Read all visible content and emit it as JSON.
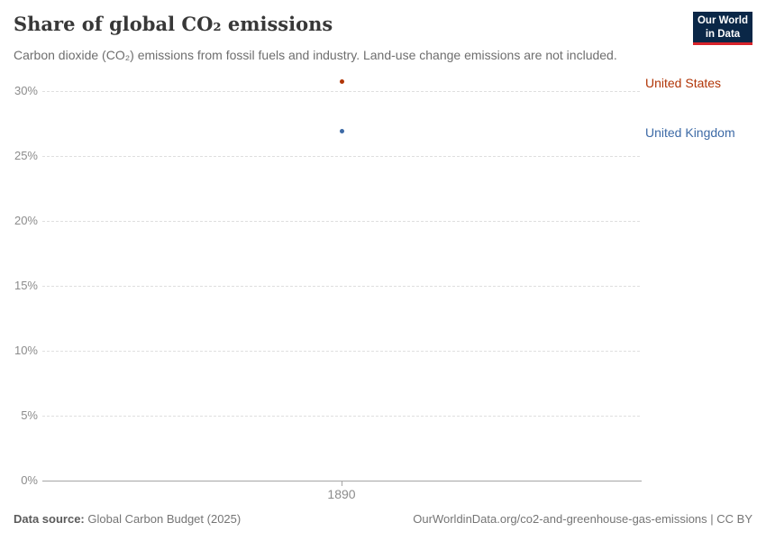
{
  "header": {
    "title": "Share of global CO₂ emissions",
    "subtitle": "Carbon dioxide (CO₂) emissions from fossil fuels and industry. Land-use change emissions are not included.",
    "logo": {
      "line1": "Our World",
      "line2": "in Data",
      "bg_color": "#0a2747",
      "accent_color": "#d8232a"
    }
  },
  "chart_data": {
    "type": "scatter",
    "x": [
      1890
    ],
    "series": [
      {
        "name": "United States",
        "color": "#B13507",
        "values": [
          30.7
        ]
      },
      {
        "name": "United Kingdom",
        "color": "#3D6AA6",
        "values": [
          26.9
        ]
      }
    ],
    "title": "Share of global CO₂ emissions",
    "xlabel": "",
    "ylabel": "",
    "ylim": [
      0,
      30
    ],
    "yticks": [
      0,
      5,
      10,
      15,
      20,
      25,
      30
    ],
    "ytick_suffix": "%",
    "grid": "dashed-horizontal",
    "legend_position": "right-of-points"
  },
  "footer": {
    "datasource_label": "Data source:",
    "datasource_value": "Global Carbon Budget (2025)",
    "right": "OurWorldinData.org/co2-and-greenhouse-gas-emissions | CC BY"
  }
}
